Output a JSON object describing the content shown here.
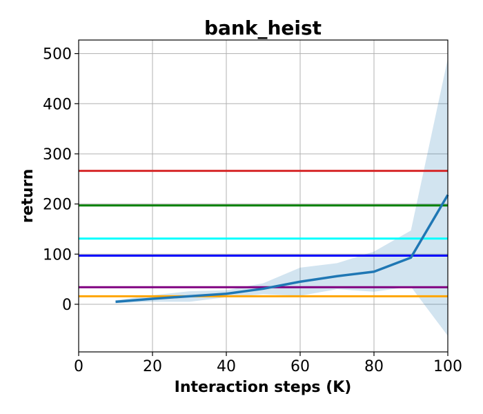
{
  "chart_data": {
    "type": "line",
    "title": "bank_heist",
    "xlabel": "Interaction steps (K)",
    "ylabel": "return",
    "xlim": [
      0,
      100
    ],
    "ylim": [
      -95,
      527
    ],
    "xticks": [
      0,
      20,
      40,
      60,
      80,
      100
    ],
    "yticks": [
      0,
      100,
      200,
      300,
      400,
      500
    ],
    "grid": true,
    "series": [
      {
        "color": "#1f77b4",
        "x": [
          10,
          20,
          30,
          40,
          50,
          60,
          70,
          80,
          90,
          100
        ],
        "y": [
          5,
          11,
          16,
          21,
          31,
          45,
          56,
          65,
          93,
          218
        ],
        "lower": [
          2,
          5,
          5,
          14,
          20,
          17,
          30,
          25,
          35,
          -63
        ],
        "upper": [
          8,
          18,
          26,
          28,
          42,
          73,
          82,
          105,
          147,
          490
        ]
      }
    ],
    "hlines": [
      {
        "y": 266,
        "color": "#d62728"
      },
      {
        "y": 197,
        "color": "#008000"
      },
      {
        "y": 131,
        "color": "#00ffff"
      },
      {
        "y": 97,
        "color": "#0000ff"
      },
      {
        "y": 34,
        "color": "#800080"
      },
      {
        "y": 16,
        "color": "#ffa500"
      }
    ]
  }
}
